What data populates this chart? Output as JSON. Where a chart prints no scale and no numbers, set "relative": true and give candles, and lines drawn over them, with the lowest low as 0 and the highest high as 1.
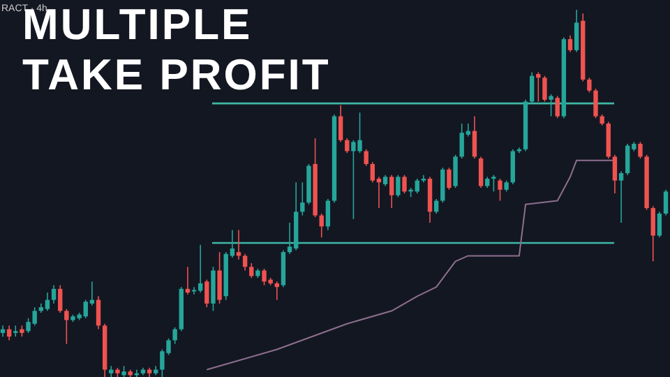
{
  "chart_data": {
    "type": "candlestick",
    "title": "MULTIPLE TAKE PROFIT",
    "subtitle": "RACT · 4h",
    "relative": true,
    "grid": false,
    "categories": [
      null,
      null,
      null,
      null,
      null,
      null,
      null,
      null,
      null,
      null,
      null,
      null,
      null,
      null,
      null,
      null,
      null,
      null,
      null,
      null,
      null,
      null,
      null,
      null,
      null,
      null,
      null,
      null,
      null,
      null,
      null,
      null,
      null,
      null,
      null,
      null,
      null,
      null,
      null,
      null,
      null,
      null,
      null,
      null,
      null,
      null,
      null,
      null,
      null,
      null,
      null,
      null,
      null,
      null,
      null,
      null,
      null,
      null,
      null,
      null,
      null,
      null,
      null,
      null,
      null,
      null,
      null,
      null,
      null,
      null,
      null,
      null,
      null,
      null,
      null,
      null,
      null,
      null,
      null,
      null,
      null,
      null,
      null,
      null,
      null,
      null,
      null,
      null,
      null,
      null,
      null,
      null,
      null,
      null,
      null,
      null,
      null,
      null,
      null,
      null,
      null,
      null,
      null,
      null,
      null
    ],
    "ohlc": [
      [
        0.12,
        0.14,
        0.11,
        0.13
      ],
      [
        0.13,
        0.14,
        0.1,
        0.11
      ],
      [
        0.12,
        0.14,
        0.11,
        0.125
      ],
      [
        0.13,
        0.14,
        0.11,
        0.12
      ],
      [
        0.125,
        0.16,
        0.12,
        0.15
      ],
      [
        0.145,
        0.19,
        0.14,
        0.18
      ],
      [
        0.18,
        0.2,
        0.175,
        0.19
      ],
      [
        0.185,
        0.23,
        0.18,
        0.21
      ],
      [
        0.21,
        0.25,
        0.2,
        0.24
      ],
      [
        0.24,
        0.25,
        0.175,
        0.18
      ],
      [
        0.18,
        0.185,
        0.09,
        0.155
      ],
      [
        0.155,
        0.17,
        0.15,
        0.165
      ],
      [
        0.16,
        0.175,
        0.155,
        0.17
      ],
      [
        0.165,
        0.21,
        0.16,
        0.205
      ],
      [
        0.2,
        0.26,
        0.195,
        0.21
      ],
      [
        0.21,
        0.22,
        0.13,
        0.14
      ],
      [
        0.14,
        0.145,
        0,
        0.02
      ],
      [
        0.01,
        0.03,
        0,
        0.02
      ],
      [
        0.02,
        0.025,
        0,
        0.01
      ],
      [
        0.005,
        0.03,
        0,
        0.015
      ],
      [
        0.015,
        0.02,
        0,
        0.005
      ],
      [
        0.005,
        0.02,
        0,
        0.01
      ],
      [
        0.01,
        0.025,
        0.005,
        0.02
      ],
      [
        0.02,
        0.025,
        0,
        0.01
      ],
      [
        0.01,
        0.03,
        0.005,
        0.02
      ],
      [
        0.02,
        0.075,
        0,
        0.07
      ],
      [
        0.065,
        0.105,
        0.06,
        0.1
      ],
      [
        0.1,
        0.135,
        0.09,
        0.13
      ],
      [
        0.13,
        0.245,
        0.125,
        0.24
      ],
      [
        0.24,
        0.3,
        0.225,
        0.23
      ],
      [
        0.233,
        0.245,
        0.225,
        0.237
      ],
      [
        0.235,
        0.36,
        0.23,
        0.255
      ],
      [
        0.26,
        0.265,
        0.19,
        0.2
      ],
      [
        0.2,
        0.3,
        0.18,
        0.29
      ],
      [
        0.29,
        0.34,
        0.2,
        0.21
      ],
      [
        0.22,
        0.34,
        0.21,
        0.335
      ],
      [
        0.33,
        0.4,
        0.325,
        0.35
      ],
      [
        0.34,
        0.4,
        0.32,
        0.33
      ],
      [
        0.33,
        0.335,
        0.29,
        0.3
      ],
      [
        0.3,
        0.31,
        0.27,
        0.275
      ],
      [
        0.275,
        0.295,
        0.27,
        0.29
      ],
      [
        0.29,
        0.295,
        0.25,
        0.26
      ],
      [
        0.265,
        0.27,
        0.25,
        0.255
      ],
      [
        0.255,
        0.26,
        0.21,
        0.245
      ],
      [
        0.25,
        0.345,
        0.245,
        0.34
      ],
      [
        0.34,
        0.42,
        0.335,
        0.355
      ],
      [
        0.35,
        0.53,
        0.345,
        0.45
      ],
      [
        0.45,
        0.53,
        0.44,
        0.475
      ],
      [
        0.475,
        0.58,
        0.47,
        0.575
      ],
      [
        0.58,
        0.65,
        0.435,
        0.44
      ],
      [
        0.44,
        0.445,
        0.38,
        0.41
      ],
      [
        0.41,
        0.485,
        0.4,
        0.48
      ],
      [
        0.48,
        0.715,
        0.475,
        0.71
      ],
      [
        0.71,
        0.74,
        0.64,
        0.645
      ],
      [
        0.645,
        0.65,
        0.61,
        0.615
      ],
      [
        0.615,
        0.645,
        0.43,
        0.64
      ],
      [
        0.615,
        0.72,
        0.61,
        0.645
      ],
      [
        0.615,
        0.62,
        0.575,
        0.58
      ],
      [
        0.58,
        0.585,
        0.53,
        0.535
      ],
      [
        0.54,
        0.545,
        0.46,
        0.53
      ],
      [
        0.525,
        0.55,
        0.52,
        0.545
      ],
      [
        0.545,
        0.55,
        0.46,
        0.495
      ],
      [
        0.495,
        0.55,
        0.49,
        0.545
      ],
      [
        0.545,
        0.55,
        0.5,
        0.505
      ],
      [
        0.505,
        0.515,
        0.49,
        0.51
      ],
      [
        0.505,
        0.54,
        0.5,
        0.535
      ],
      [
        0.535,
        0.55,
        0.53,
        0.54
      ],
      [
        0.54,
        0.545,
        0.42,
        0.45
      ],
      [
        0.45,
        0.485,
        0.445,
        0.48
      ],
      [
        0.48,
        0.57,
        0.475,
        0.565
      ],
      [
        0.565,
        0.57,
        0.51,
        0.515
      ],
      [
        0.52,
        0.605,
        0.515,
        0.6
      ],
      [
        0.6,
        0.69,
        0.595,
        0.665
      ],
      [
        0.66,
        0.69,
        0.655,
        0.67
      ],
      [
        0.67,
        0.71,
        0.595,
        0.6
      ],
      [
        0.595,
        0.6,
        0.515,
        0.52
      ],
      [
        0.52,
        0.545,
        0.515,
        0.54
      ],
      [
        0.54,
        0.55,
        0.505,
        0.545
      ],
      [
        0.535,
        0.54,
        0.48,
        0.51
      ],
      [
        0.51,
        0.535,
        0.505,
        0.53
      ],
      [
        0.53,
        0.62,
        0.525,
        0.615
      ],
      [
        0.615,
        0.625,
        0.61,
        0.62
      ],
      [
        0.62,
        0.755,
        0.615,
        0.75
      ],
      [
        0.75,
        0.83,
        0.745,
        0.82
      ],
      [
        0.825,
        0.83,
        0.75,
        0.815
      ],
      [
        0.815,
        0.82,
        0.75,
        0.755
      ],
      [
        0.755,
        0.77,
        0.71,
        0.765
      ],
      [
        0.76,
        0.765,
        0.705,
        0.71
      ],
      [
        0.71,
        0.925,
        0.705,
        0.92
      ],
      [
        0.92,
        0.93,
        0.885,
        0.89
      ],
      [
        0.89,
        1,
        0.885,
        0.965
      ],
      [
        0.97,
        0.99,
        0.805,
        0.81
      ],
      [
        0.81,
        0.815,
        0.775,
        0.78
      ],
      [
        0.78,
        0.785,
        0.705,
        0.71
      ],
      [
        0.71,
        0.715,
        0.685,
        0.69
      ],
      [
        0.69,
        0.695,
        0.595,
        0.6
      ],
      [
        0.6,
        0.605,
        0.5,
        0.535
      ],
      [
        0.535,
        0.56,
        0.42,
        0.555
      ],
      [
        0.555,
        0.635,
        0.55,
        0.63
      ],
      [
        0.62,
        0.64,
        0.615,
        0.635
      ],
      [
        0.635,
        0.64,
        0.595,
        0.6
      ],
      [
        0.6,
        0.605,
        0.455,
        0.46
      ],
      [
        0.46,
        0.465,
        0.315,
        0.385
      ],
      [
        0.385,
        0.45,
        0.38,
        0.445
      ],
      [
        0.445,
        0.51,
        0.44,
        0.505
      ]
    ],
    "series": [
      {
        "type": "line",
        "color": "#8e6f8e",
        "values": [
          null,
          null,
          null,
          null,
          null,
          null,
          null,
          null,
          null,
          null,
          null,
          null,
          null,
          null,
          null,
          null,
          null,
          null,
          null,
          null,
          null,
          null,
          null,
          null,
          null,
          null,
          null,
          null,
          null,
          null,
          null,
          null,
          0.02,
          null,
          null,
          null,
          null,
          null,
          null,
          null,
          null,
          null,
          null,
          0.075,
          null,
          null,
          null,
          null,
          null,
          null,
          null,
          null,
          null,
          null,
          0.145,
          null,
          null,
          null,
          null,
          null,
          null,
          0.18,
          null,
          null,
          null,
          0.22,
          null,
          null,
          0.245,
          null,
          null,
          0.315,
          null,
          0.33,
          null,
          null,
          null,
          null,
          null,
          null,
          null,
          0.33,
          0.47,
          null,
          null,
          null,
          null,
          0.48,
          null,
          0.545,
          0.59,
          null,
          null,
          null,
          null,
          null,
          0.59,
          null,
          null,
          null,
          null,
          null,
          null,
          null,
          null
        ]
      }
    ],
    "ref_lines": [
      {
        "axis": "y",
        "value": 0.745,
        "color": "#3fb8a6"
      },
      {
        "axis": "y",
        "value": 0.365,
        "color": "#3fb8a6"
      }
    ]
  }
}
